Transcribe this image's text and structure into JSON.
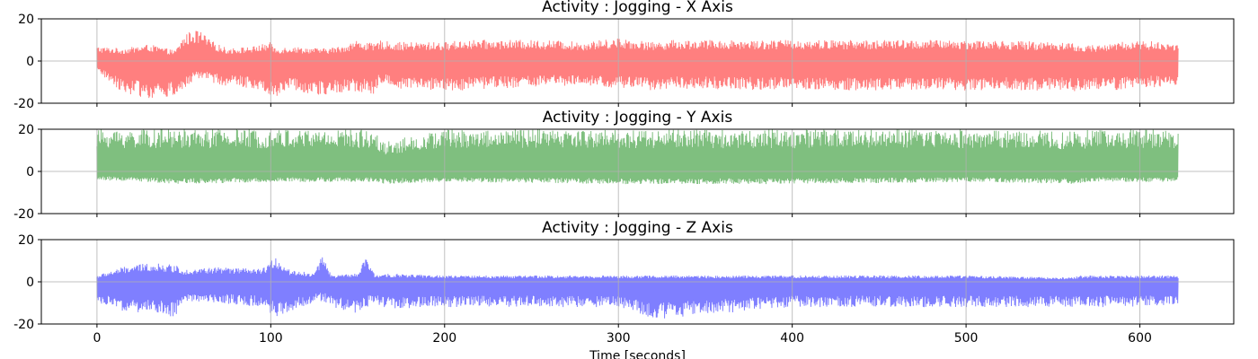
{
  "chart_data": [
    {
      "type": "line",
      "title": "Activity : Jogging - X Axis",
      "xlim": [
        -32,
        654
      ],
      "ylim": [
        -20,
        20
      ],
      "yticks": [
        -20,
        0,
        20
      ],
      "xticks": [
        0,
        100,
        200,
        300,
        400,
        500,
        600
      ],
      "grid": true,
      "series": [
        {
          "color": "#ff0000",
          "alpha": 0.5,
          "x_range": [
            0,
            622
          ],
          "envelope_x": [
            0,
            15,
            30,
            45,
            50,
            55,
            60,
            65,
            75,
            90,
            100,
            103,
            110,
            130,
            140,
            150,
            160,
            162,
            170,
            200,
            210,
            230,
            260,
            280,
            300,
            320,
            330,
            400,
            500,
            560,
            566,
            600,
            622
          ],
          "envelope_upper": [
            7,
            6,
            8,
            5,
            12,
            15,
            14,
            10,
            6,
            7,
            9,
            6,
            7,
            6,
            7,
            10,
            8,
            10,
            9,
            9,
            10,
            10,
            10,
            9,
            11,
            9,
            10,
            10,
            10,
            9,
            7,
            10,
            8
          ],
          "envelope_lower": [
            -5,
            -15,
            -18,
            -17,
            -14,
            -10,
            -8,
            -10,
            -12,
            -13,
            -16,
            -18,
            -13,
            -17,
            -15,
            -15,
            -16,
            -10,
            -13,
            -14,
            -14,
            -13,
            -12,
            -12,
            -13,
            -14,
            -13,
            -14,
            -14,
            -14,
            -15,
            -13,
            -12
          ]
        }
      ]
    },
    {
      "type": "line",
      "title": "Activity : Jogging - Y Axis",
      "xlim": [
        -32,
        654
      ],
      "ylim": [
        -20,
        20
      ],
      "yticks": [
        -20,
        0,
        20
      ],
      "xticks": [
        0,
        100,
        200,
        300,
        400,
        500,
        600
      ],
      "grid": true,
      "series": [
        {
          "color": "#008000",
          "alpha": 0.5,
          "x_range": [
            0,
            622
          ],
          "envelope_x": [
            0,
            50,
            100,
            160,
            165,
            200,
            300,
            400,
            500,
            566,
            570,
            622
          ],
          "envelope_upper": [
            20,
            20,
            20,
            20,
            14,
            20,
            20,
            20,
            20,
            19,
            20,
            20
          ],
          "envelope_lower": [
            -4,
            -6,
            -5,
            -5,
            -6,
            -5,
            -6,
            -6,
            -5,
            -6,
            -5,
            -5
          ]
        }
      ]
    },
    {
      "type": "line",
      "title": "Activity : Jogging - Z Axis",
      "xlim": [
        -32,
        654
      ],
      "ylim": [
        -20,
        20
      ],
      "yticks": [
        -20,
        0,
        20
      ],
      "xticks": [
        0,
        100,
        200,
        300,
        400,
        500,
        600
      ],
      "xlabel": "Time [seconds]",
      "grid": true,
      "series": [
        {
          "color": "#0000ff",
          "alpha": 0.5,
          "x_range": [
            0,
            622
          ],
          "envelope_x": [
            0,
            15,
            30,
            45,
            50,
            70,
            95,
            103,
            110,
            125,
            130,
            135,
            150,
            155,
            160,
            165,
            200,
            300,
            320,
            400,
            500,
            560,
            566,
            600,
            622
          ],
          "envelope_upper": [
            3,
            7,
            9,
            8,
            6,
            7,
            6,
            12,
            6,
            4,
            14,
            3,
            4,
            12,
            3,
            4,
            3,
            3,
            3,
            3,
            3,
            2,
            3,
            3,
            3
          ],
          "envelope_lower": [
            -10,
            -14,
            -15,
            -17,
            -9,
            -10,
            -12,
            -17,
            -15,
            -10,
            -9,
            -12,
            -15,
            -12,
            -10,
            -13,
            -12,
            -12,
            -18,
            -12,
            -12,
            -12,
            -12,
            -12,
            -11
          ]
        }
      ]
    }
  ]
}
